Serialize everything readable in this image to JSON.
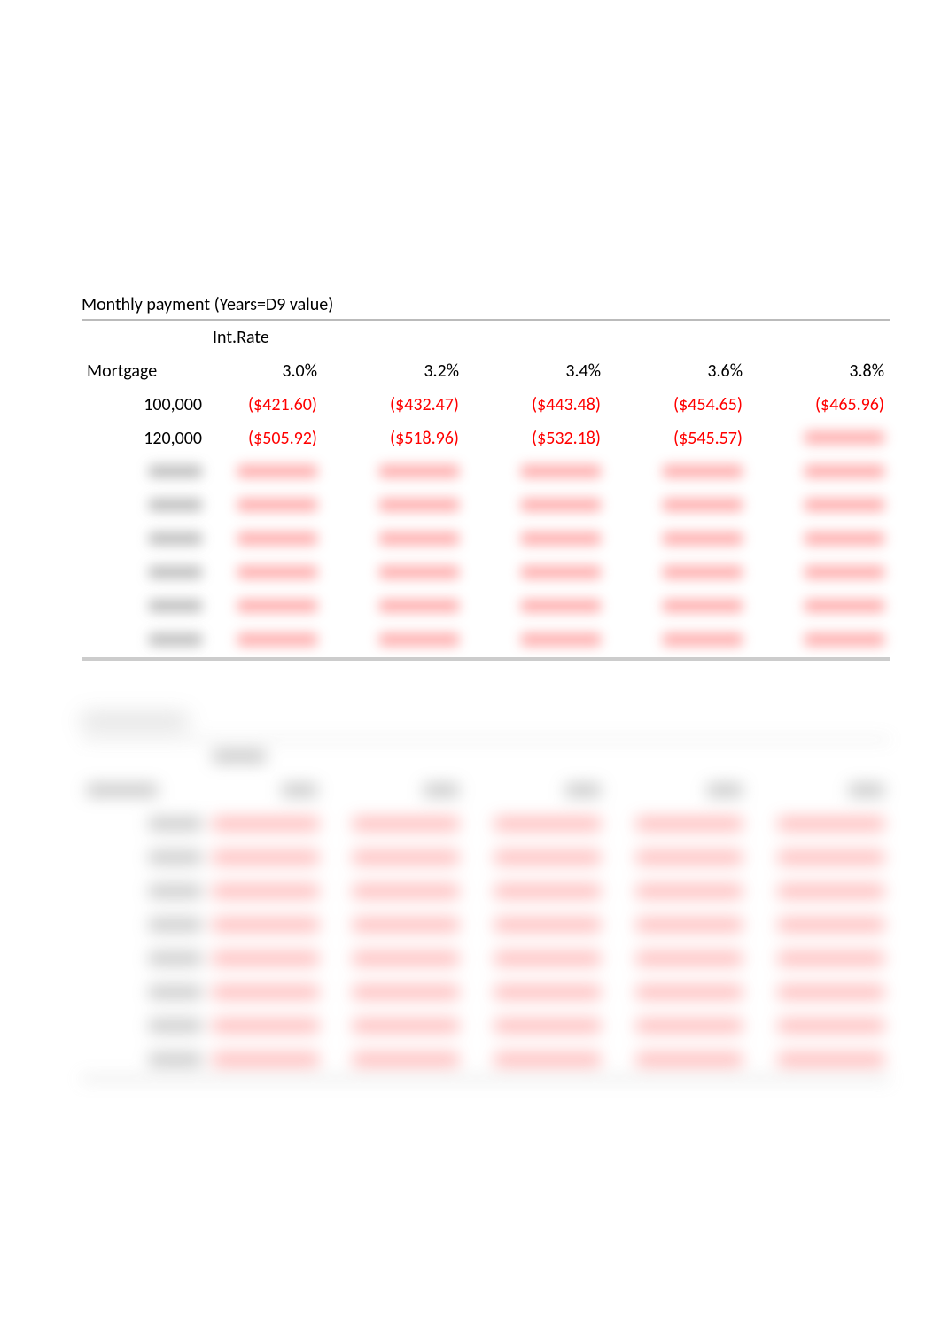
{
  "table1": {
    "title": "Monthly payment (Years=D9 value)",
    "rate_header": "Int.Rate",
    "mortgage_header": "Mortgage",
    "rates": [
      "3.0%",
      "3.2%",
      "3.4%",
      "3.6%",
      "3.8%"
    ],
    "rows_visible": [
      {
        "m": "100,000",
        "v": [
          "($421.60)",
          "($432.47)",
          "($443.48)",
          "($454.65)",
          "($465.96)"
        ]
      },
      {
        "m": "120,000",
        "v": [
          "($505.92)",
          "($518.96)",
          "($532.18)",
          "($545.57)",
          ""
        ]
      }
    ],
    "rows_blurred_count": 6
  },
  "table2": {
    "rows_blurred_count": 8,
    "cols": 5
  },
  "colors": {
    "negative": "#ff0000",
    "text": "#000000",
    "background": "#ffffff",
    "border": "#cccccc",
    "blur_red": "#ff9a9a",
    "blur_gray": "#b0b0b0"
  }
}
